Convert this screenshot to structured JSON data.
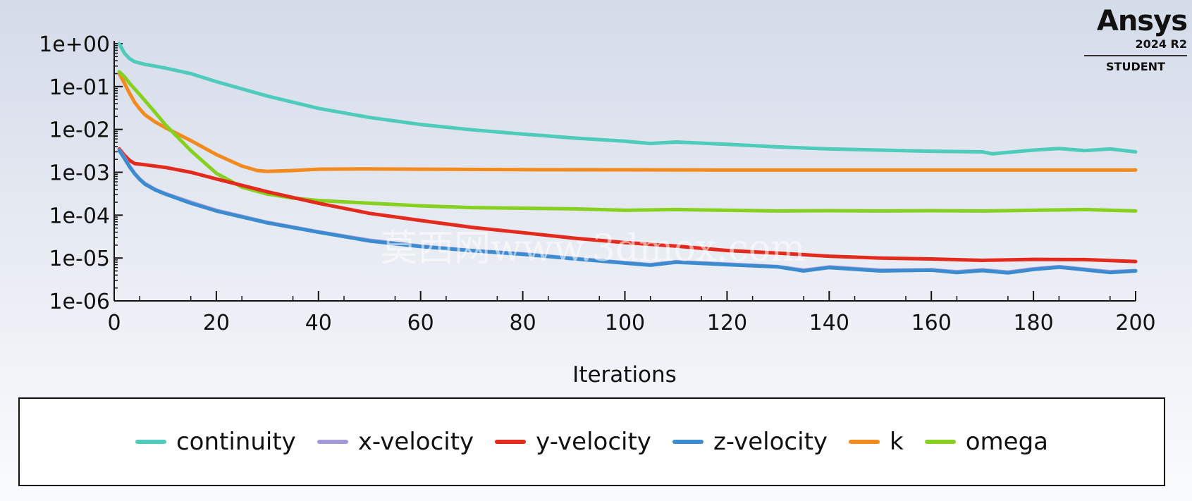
{
  "chart_data": {
    "type": "line",
    "xlabel": "Iterations",
    "ylabel": "",
    "yscale": "log",
    "xlim": [
      0,
      200
    ],
    "ylim": [
      1e-06,
      1
    ],
    "x_ticks": [
      0,
      20,
      40,
      60,
      80,
      100,
      120,
      140,
      160,
      180,
      200
    ],
    "x_tick_labels": [
      "0",
      "20",
      "40",
      "60",
      "80",
      "100",
      "120",
      "140",
      "160",
      "180",
      "200"
    ],
    "y_ticks": [
      1,
      0.1,
      0.01,
      0.001,
      0.0001,
      1e-05,
      1e-06
    ],
    "y_tick_labels": [
      "1e+00",
      "1e-01",
      "1e-02",
      "1e-03",
      "1e-04",
      "1e-05",
      "1e-06"
    ],
    "grid": false,
    "legend_position": "bottom",
    "series": [
      {
        "name": "continuity",
        "color": "#4ecbbb",
        "x": [
          1,
          2,
          3,
          4,
          6,
          8,
          10,
          15,
          20,
          30,
          40,
          50,
          60,
          70,
          80,
          90,
          100,
          105,
          110,
          120,
          130,
          140,
          150,
          160,
          170,
          172,
          180,
          185,
          190,
          195,
          200
        ],
        "y": [
          1.0,
          0.6,
          0.45,
          0.38,
          0.33,
          0.3,
          0.27,
          0.2,
          0.13,
          0.06,
          0.031,
          0.019,
          0.013,
          0.0098,
          0.0078,
          0.0063,
          0.0053,
          0.0047,
          0.0051,
          0.0045,
          0.0039,
          0.0035,
          0.0033,
          0.0031,
          0.003,
          0.0027,
          0.0033,
          0.0036,
          0.0032,
          0.0035,
          0.003
        ]
      },
      {
        "name": "x-velocity",
        "color": "#a59ad8",
        "x": [
          1,
          2,
          3,
          4,
          5,
          6,
          8,
          10,
          15,
          20,
          30,
          40,
          50,
          60,
          70,
          80,
          90,
          100,
          105,
          110,
          120,
          130,
          135,
          140,
          150,
          160,
          165,
          170,
          175,
          180,
          185,
          190,
          195,
          200
        ],
        "y": [
          0.0033,
          0.0022,
          0.0014,
          0.00095,
          0.0007,
          0.00055,
          0.0004,
          0.00032,
          0.0002,
          0.00013,
          6.8e-05,
          4.1e-05,
          2.6e-05,
          1.9e-05,
          1.5e-05,
          1.25e-05,
          9.8e-06,
          7.8e-06,
          7e-06,
          8.2e-06,
          7.2e-06,
          6.3e-06,
          5.2e-06,
          6.2e-06,
          5.2e-06,
          5.3e-06,
          4.8e-06,
          5.3e-06,
          4.7e-06,
          5.6e-06,
          6.3e-06,
          5.5e-06,
          4.8e-06,
          5.1e-06
        ]
      },
      {
        "name": "y-velocity",
        "color": "#e42a1c",
        "x": [
          1,
          2,
          3,
          4,
          6,
          10,
          15,
          20,
          30,
          40,
          50,
          60,
          70,
          80,
          90,
          100,
          110,
          120,
          130,
          140,
          150,
          160,
          170,
          180,
          190,
          200
        ],
        "y": [
          0.0035,
          0.0025,
          0.0019,
          0.0016,
          0.0015,
          0.0013,
          0.001,
          0.0007,
          0.00035,
          0.00019,
          0.00011,
          7.5e-05,
          5.2e-05,
          3.9e-05,
          2.9e-05,
          2.3e-05,
          1.9e-05,
          1.5e-05,
          1.3e-05,
          1.1e-05,
          1e-05,
          9.5e-06,
          8.8e-06,
          9.3e-06,
          9.2e-06,
          8.3e-06
        ]
      },
      {
        "name": "z-velocity",
        "color": "#3a8bd0",
        "x": [
          1,
          2,
          3,
          4,
          5,
          6,
          8,
          10,
          15,
          20,
          30,
          40,
          50,
          60,
          70,
          80,
          90,
          100,
          105,
          110,
          120,
          130,
          135,
          140,
          150,
          160,
          165,
          170,
          175,
          180,
          185,
          190,
          195,
          200
        ],
        "y": [
          0.0032,
          0.0021,
          0.00135,
          0.00092,
          0.00068,
          0.00053,
          0.00039,
          0.00031,
          0.00019,
          0.000125,
          6.6e-05,
          4e-05,
          2.5e-05,
          1.85e-05,
          1.48e-05,
          1.22e-05,
          9.6e-06,
          7.6e-06,
          6.8e-06,
          8e-06,
          7e-06,
          6.2e-06,
          5e-06,
          6e-06,
          5e-06,
          5.2e-06,
          4.6e-06,
          5.1e-06,
          4.5e-06,
          5.4e-06,
          6.1e-06,
          5.3e-06,
          4.6e-06,
          5e-06
        ]
      },
      {
        "name": "k",
        "color": "#f28a1e",
        "x": [
          1,
          2,
          3,
          4,
          5,
          6,
          8,
          10,
          15,
          20,
          25,
          28,
          30,
          35,
          40,
          50,
          60,
          80,
          100,
          120,
          140,
          160,
          180,
          200
        ],
        "y": [
          0.2,
          0.12,
          0.07,
          0.043,
          0.03,
          0.022,
          0.015,
          0.011,
          0.0055,
          0.0026,
          0.0014,
          0.0011,
          0.00105,
          0.0011,
          0.00118,
          0.0012,
          0.00118,
          0.00115,
          0.00114,
          0.00113,
          0.00113,
          0.00113,
          0.00113,
          0.00113
        ]
      },
      {
        "name": "omega",
        "color": "#86d11f",
        "x": [
          1,
          2,
          3,
          5,
          8,
          10,
          15,
          20,
          25,
          30,
          35,
          40,
          50,
          60,
          70,
          80,
          90,
          100,
          110,
          120,
          130,
          140,
          150,
          160,
          170,
          180,
          190,
          200
        ],
        "y": [
          0.22,
          0.17,
          0.12,
          0.065,
          0.025,
          0.013,
          0.0032,
          0.00095,
          0.00045,
          0.00031,
          0.00025,
          0.00022,
          0.00019,
          0.000165,
          0.00015,
          0.000145,
          0.00014,
          0.00013,
          0.000135,
          0.00013,
          0.000125,
          0.000127,
          0.000125,
          0.000127,
          0.000125,
          0.00013,
          0.000135,
          0.000125
        ]
      }
    ]
  },
  "logo": {
    "brand": "Ansys",
    "version": "2024 R2",
    "edition": "STUDENT"
  },
  "watermark": "莫西网www.3dmox.com"
}
